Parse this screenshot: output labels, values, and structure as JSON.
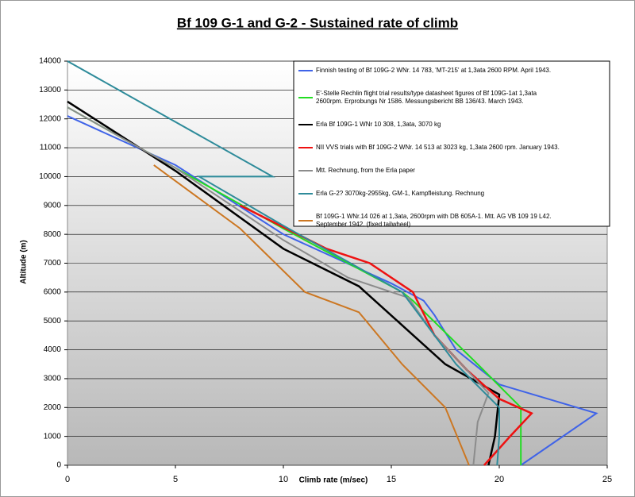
{
  "chart_data": {
    "type": "line",
    "title": "Bf 109 G-1 and G-2 - Sustained rate of climb",
    "x_label": "Climb rate (m/sec)",
    "y_label": "Altitude (m)",
    "xlim": [
      0,
      25
    ],
    "xticks": [
      0,
      5,
      10,
      15,
      20,
      25
    ],
    "ylim": [
      0,
      14000
    ],
    "yticks": [
      0,
      1000,
      2000,
      3000,
      4000,
      5000,
      6000,
      7000,
      8000,
      9000,
      10000,
      11000,
      12000,
      13000,
      14000
    ],
    "grid": true,
    "legend": "upper right",
    "series": [
      {
        "name": "Finnish testing of Bf 109G-2 WNr. 14 783, 'MT-215' at 1,3ata 2600 RPM. April 1943.",
        "color": "#3f63e8",
        "x": [
          0,
          5,
          10,
          15,
          16.5,
          17,
          18,
          20,
          24.5,
          21
        ],
        "values": [
          12100,
          10400,
          8000,
          6300,
          5700,
          5200,
          4000,
          2800,
          1800,
          0
        ]
      },
      {
        "name": "E'-Stelle Rechlin flight trial results/type datasheet figures of Bf 109G-1at 1,3ata 2600rpm. Erprobungs Nr 1586. Messungsbericht BB 136/43. March 1943.",
        "color": "#22dd22",
        "x": [
          0,
          5,
          10,
          15.5,
          16,
          19,
          21,
          21,
          21
        ],
        "values": [
          12400,
          10300,
          8200,
          6000,
          5700,
          3500,
          2000,
          1500,
          0
        ]
      },
      {
        "name": "Erla Bf 109G-1 WNr 10 308, 1,3ata, 3070 kg",
        "color": "#000000",
        "x": [
          0,
          5,
          10,
          13.5,
          17.5,
          20,
          19.8,
          19.5
        ],
        "values": [
          12600,
          10200,
          7500,
          6200,
          3500,
          2450,
          1000,
          0
        ]
      },
      {
        "name": "NII VVS trials with Bf 109G-2 WNr. 14 513 at 3023 kg, 1,3ata 2600 rpm. January 1943.",
        "color": "#ee1111",
        "x": [
          8,
          12,
          14,
          16,
          17,
          18.5,
          20,
          21.5,
          20.5,
          19.3
        ],
        "values": [
          9000,
          7500,
          7000,
          6000,
          4500,
          3300,
          2300,
          1800,
          1000,
          0
        ]
      },
      {
        "name": "Mtt. Rechnung, from the Erla paper",
        "color": "#8c8c8c",
        "x": [
          0,
          5,
          10,
          13,
          15.8,
          17,
          19.5,
          19,
          18.8
        ],
        "values": [
          12400,
          10300,
          7800,
          6500,
          5800,
          4500,
          2500,
          1500,
          0
        ]
      },
      {
        "name": "Erla G-2? 3070kg-2955kg, GM-1, Kampfleistung. Rechnung",
        "color": "#2e8b9a",
        "x": [
          0,
          9.5,
          6.1,
          10,
          15.5,
          18,
          20,
          20,
          19.9
        ],
        "values": [
          14000,
          10000,
          10000,
          8300,
          6000,
          3500,
          2000,
          1000,
          0
        ]
      },
      {
        "name": "Bf 109G-1 WNr.14 026 at 1,3ata,  2600rpm with DB 605A-1. Mtt. AG VB 109 19 L42. September 1942. (fixed tailwheel)",
        "color": "#cc7722",
        "x": [
          4,
          8,
          11,
          13.5,
          15.5,
          17.5,
          18.6
        ],
        "values": [
          10400,
          8200,
          6000,
          5300,
          3500,
          2000,
          0
        ]
      }
    ]
  }
}
